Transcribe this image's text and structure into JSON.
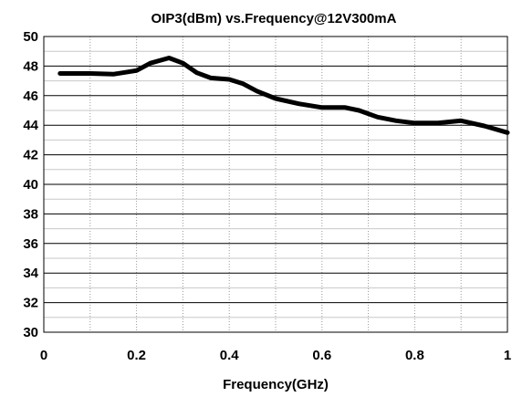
{
  "chart_data": {
    "type": "line",
    "title": "OIP3(dBm) vs.Frequency@12V300mA",
    "xlabel": "Frequency(GHz)",
    "ylabel": "",
    "xlim": [
      0,
      1
    ],
    "ylim": [
      30,
      50
    ],
    "x_ticks": [
      0,
      0.2,
      0.4,
      0.6,
      0.8,
      1
    ],
    "x_tick_labels": [
      "0",
      "0.2",
      "0.4",
      "0.6",
      "0.8",
      "1"
    ],
    "y_ticks": [
      30,
      32,
      34,
      36,
      38,
      40,
      42,
      44,
      46,
      48,
      50
    ],
    "y_tick_labels": [
      "30",
      "32",
      "34",
      "36",
      "38",
      "40",
      "42",
      "44",
      "46",
      "48",
      "50"
    ],
    "grid": {
      "horizontal_major": true,
      "horizontal_minor": true,
      "vertical_minor_dotted": true,
      "vertical_minor_step": 0.1
    },
    "legend": "none",
    "series": [
      {
        "color": "#000000",
        "x": [
          0.035,
          0.1,
          0.15,
          0.2,
          0.23,
          0.27,
          0.3,
          0.33,
          0.36,
          0.4,
          0.43,
          0.46,
          0.5,
          0.55,
          0.6,
          0.65,
          0.68,
          0.72,
          0.76,
          0.8,
          0.85,
          0.9,
          0.95,
          1.0
        ],
        "y": [
          47.5,
          47.5,
          47.45,
          47.7,
          48.2,
          48.55,
          48.2,
          47.55,
          47.2,
          47.1,
          46.8,
          46.3,
          45.8,
          45.45,
          45.2,
          45.2,
          45.0,
          44.55,
          44.3,
          44.15,
          44.15,
          44.3,
          43.95,
          43.5
        ]
      }
    ]
  }
}
